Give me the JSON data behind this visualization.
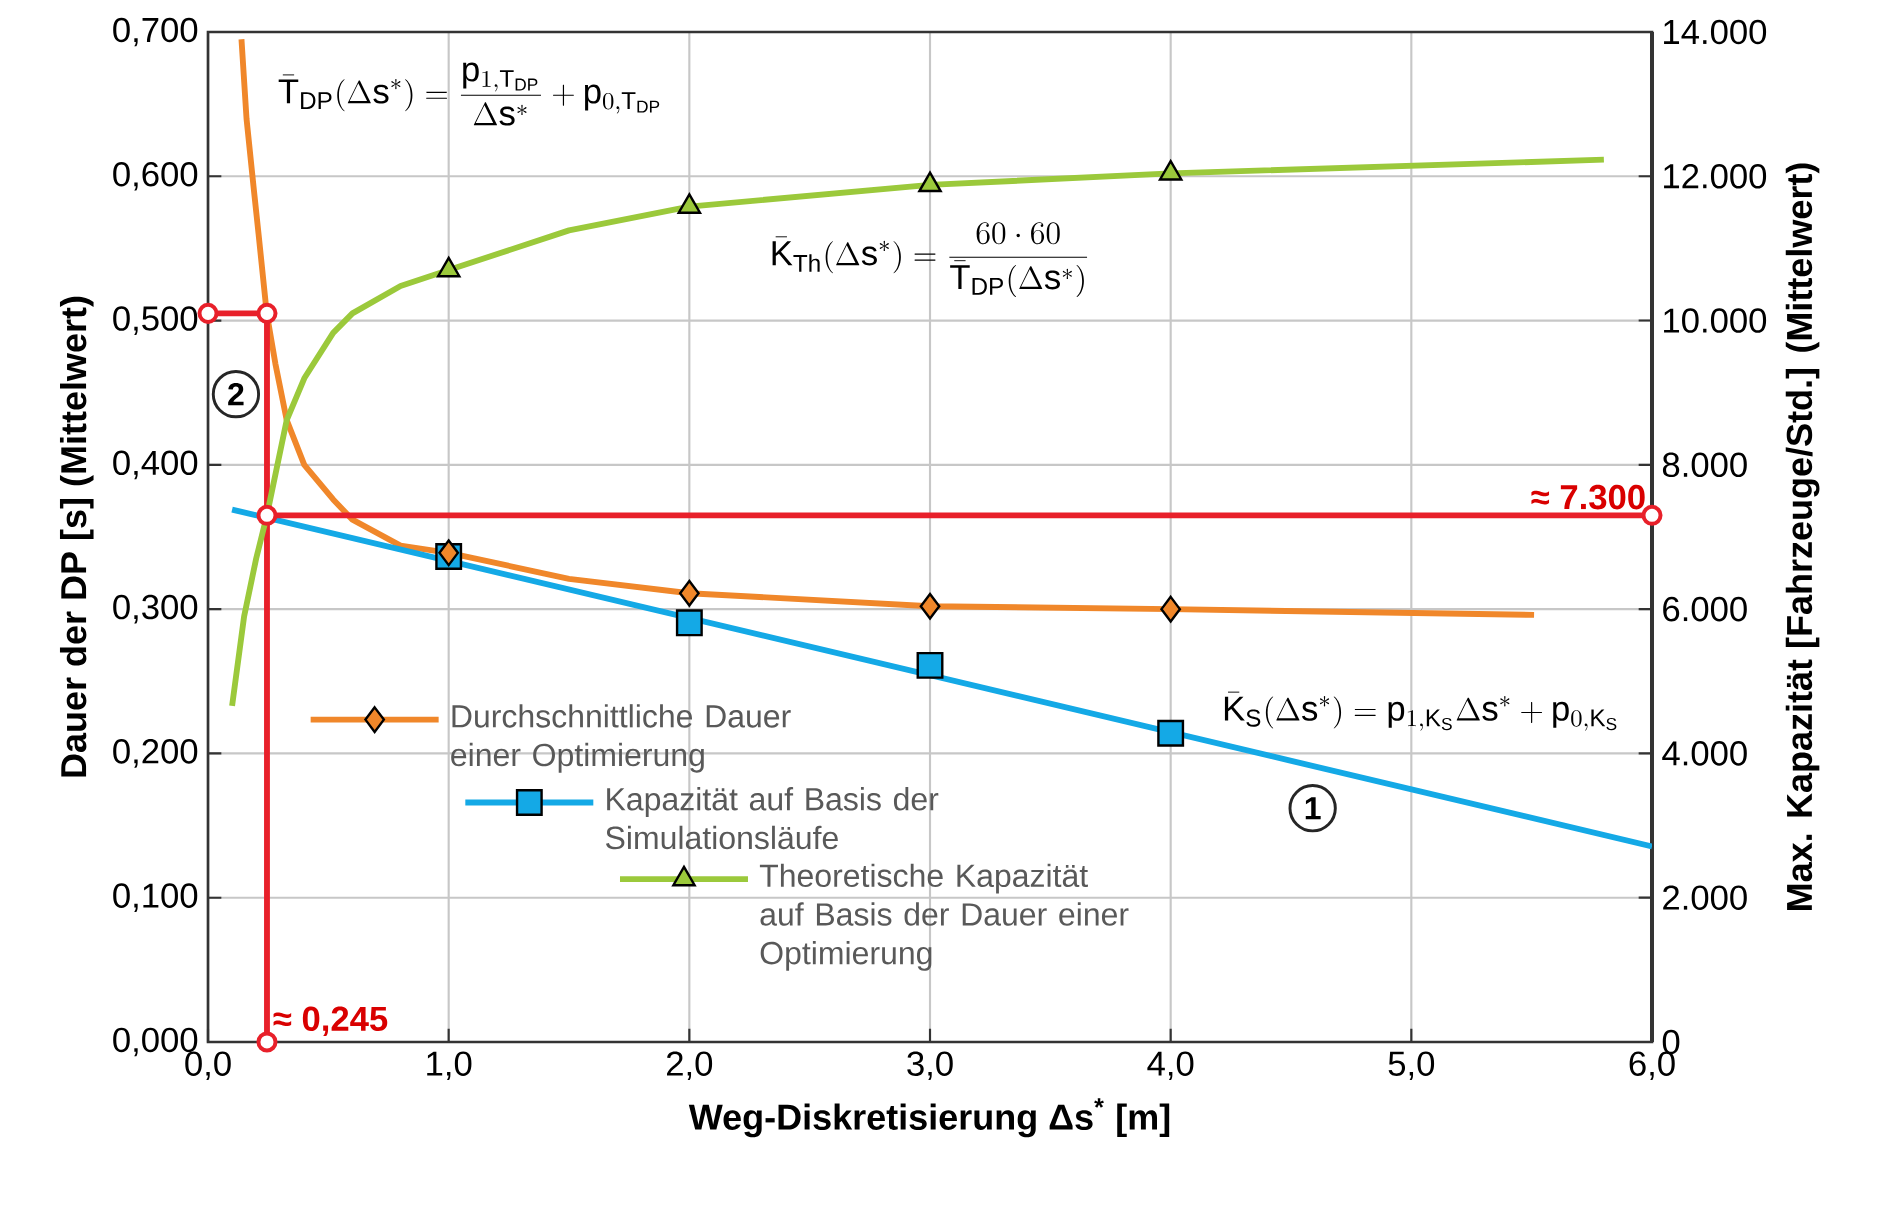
{
  "chart_data": {
    "type": "line",
    "xlabel": "Weg-Diskretisierung Δs$^{*}$ [m]",
    "ylabel": "Dauer der DP [s] (Mittelwert)",
    "y2label": "Max. Kapazität [Fahrzeuge/Std.] (Mittelwert)",
    "xlim": [
      0,
      6
    ],
    "xticks": [
      {
        "value": 0,
        "label": "0,0"
      },
      {
        "value": 1,
        "label": "1,0"
      },
      {
        "value": 2,
        "label": "2,0"
      },
      {
        "value": 3,
        "label": "3,0"
      },
      {
        "value": 4,
        "label": "4,0"
      },
      {
        "value": 5,
        "label": "5,0"
      },
      {
        "value": 6,
        "label": "6,0"
      }
    ],
    "ylim": [
      0,
      0.7
    ],
    "yticks": [
      {
        "value": 0,
        "label": "0,000"
      },
      {
        "value": 0.1,
        "label": "0,100"
      },
      {
        "value": 0.2,
        "label": "0,200"
      },
      {
        "value": 0.3,
        "label": "0,300"
      },
      {
        "value": 0.4,
        "label": "0,400"
      },
      {
        "value": 0.5,
        "label": "0,500"
      },
      {
        "value": 0.6,
        "label": "0,600"
      },
      {
        "value": 0.7,
        "label": "0,700"
      }
    ],
    "y2lim": [
      0,
      14000
    ],
    "y2ticks": [
      0,
      {
        "value": 2000,
        "label": "2.000"
      },
      {
        "value": 4000,
        "label": "4.000"
      },
      {
        "value": 6000,
        "label": "6.000"
      },
      {
        "value": 8000,
        "label": "8.000"
      },
      {
        "value": 10000,
        "label": "10.000"
      },
      {
        "value": 12000,
        "label": "12.000"
      },
      {
        "value": 14000,
        "label": "14.000"
      }
    ],
    "grid": true,
    "legend": "bottom left",
    "series": [
      {
        "name": "Durchschnittliche Dauer einer Optimierung",
        "type": "scatter",
        "marker": "diamond",
        "color": "#f0872a",
        "x": [
          1,
          2,
          3,
          4
        ],
        "values": [
          0.339,
          0.311,
          0.302,
          0.3
        ]
      },
      {
        "marker": "none",
        "color": "#f0872a",
        "x": [
          0.139,
          0.16,
          0.189,
          0.21,
          0.244,
          0.28,
          0.327,
          0.4,
          0.52,
          0.6,
          0.8,
          1,
          1.5,
          2,
          3,
          4,
          5.51
        ],
        "values": [
          0.695,
          0.64,
          0.593,
          0.56,
          0.505,
          0.47,
          0.431,
          0.4,
          0.376,
          0.362,
          0.344,
          0.339,
          0.321,
          0.311,
          0.302,
          0.3,
          0.296
        ]
      },
      {
        "name": "Kapazität auf Basis der Simulationsläufe",
        "type": "scatter",
        "marker": "square",
        "axis": "y2",
        "color": "#14a9e6",
        "x": [
          1,
          2,
          3,
          4
        ],
        "values": [
          6730,
          5810,
          5220,
          4280
        ]
      },
      {
        "marker": "none",
        "axis": "y2",
        "color": "#14a9e6",
        "x": [
          0.1,
          6
        ],
        "values": [
          7380,
          2710
        ]
      },
      {
        "name": "Theoretische Kapazität auf Basis der Dauer einer Optimierung",
        "type": "scatter",
        "marker": "triangle",
        "axis": "y2",
        "color": "#9bc93b",
        "x": [
          1,
          2,
          3,
          4
        ],
        "values": [
          10700,
          11580,
          11880,
          12040
        ]
      },
      {
        "marker": "none",
        "axis": "y2",
        "color": "#9bc93b",
        "x": [
          0.1,
          0.15,
          0.2,
          0.244,
          0.327,
          0.4,
          0.52,
          0.6,
          0.8,
          1,
          1.5,
          2,
          3,
          4,
          5.8
        ],
        "values": [
          4660,
          5900,
          6700,
          7290,
          8620,
          9200,
          9830,
          10100,
          10480,
          10700,
          11250,
          11580,
          11880,
          12040,
          12230
        ]
      },
      {
        "marker": "circle",
        "color": "#e8202a",
        "x": [
          0,
          0.245,
          0.245
        ],
        "values": [
          0.505,
          0.505,
          0
        ]
      },
      {
        "marker": "circle",
        "axis": "y2",
        "color": "#e8202a",
        "x": [
          0.245,
          6
        ],
        "values": [
          7300,
          7300
        ]
      }
    ],
    "annotations": [
      "\\bar{\\mathrm{T}}_{\\mathrm{DP}}(\\Delta \\mathrm{s}^{*}) = \\frac{\\mathrm{p}_{1,\\mathrm{T}_{\\mathrm{DP}}}}{\\Delta \\mathrm{s}^{*}} + \\mathrm{p}_{0,\\mathrm{T}_{\\mathrm{DP}}}",
      "\\bar{\\mathrm{K}}_{\\mathrm{Th}}(\\Delta \\mathrm{s}^{*}) = \\frac{60 \\cdot 60}{\\bar{\\mathrm{T}}_{\\mathrm{DP}}(\\Delta \\mathrm{s}^{*})}",
      "\\bar{\\mathrm{K}}_{\\mathrm{S}}(\\Delta \\mathrm{s}^{*}) = \\mathrm{p}_{1,\\mathrm{K}_{\\mathrm{S}}}\\Delta \\mathrm{s}^{*} + \\mathrm{p}_{0,\\mathrm{K}_{\\mathrm{S}}}",
      "1",
      "2",
      "≈ 7.300",
      {
        "text": "≈ 0,245",
        "x": 0.245,
        "y": 0
      }
    ]
  }
}
